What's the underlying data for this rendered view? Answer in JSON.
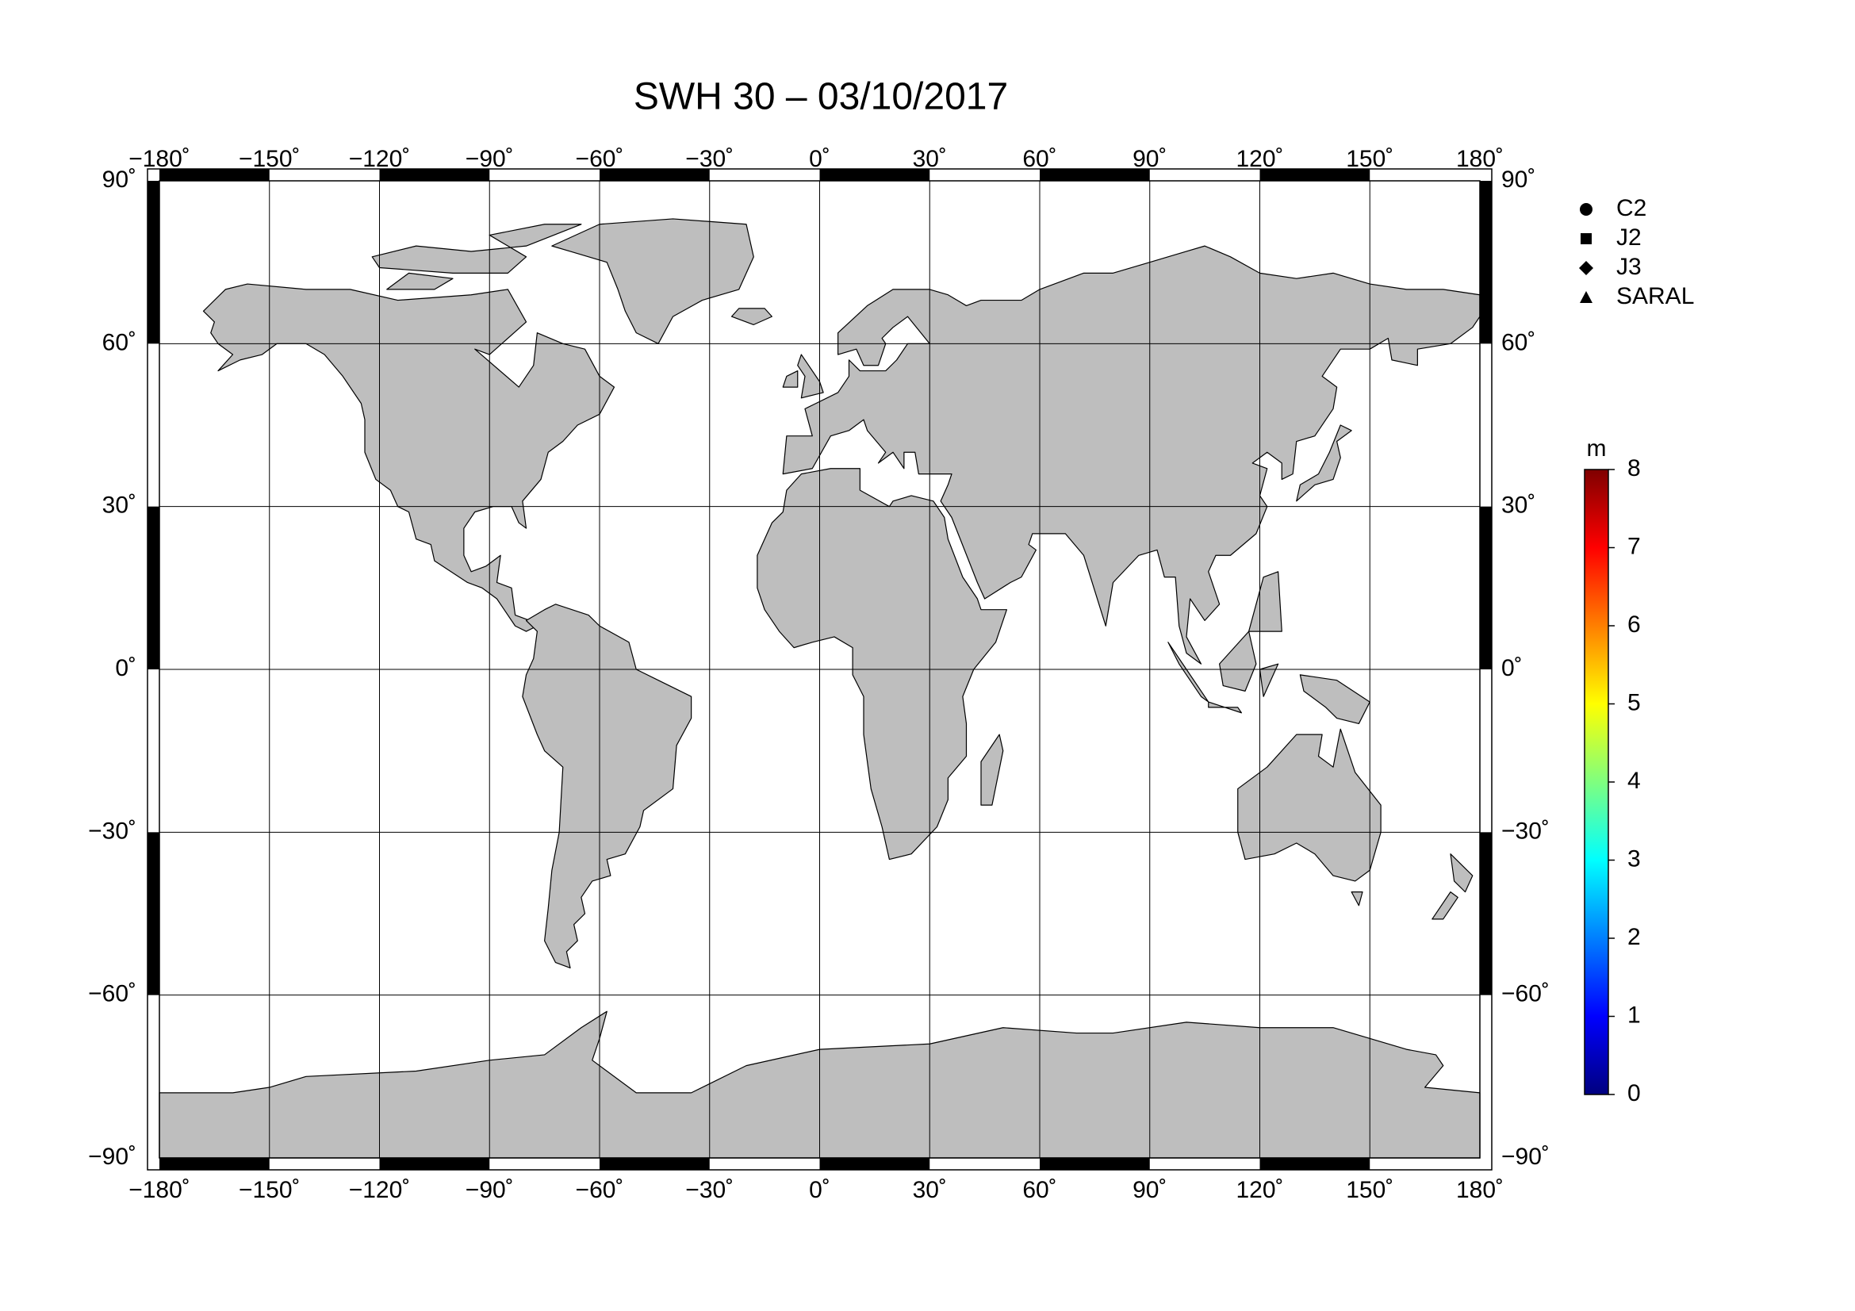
{
  "title": "SWH 30 – 03/10/2017",
  "map": {
    "xlim": [
      -180,
      180
    ],
    "ylim": [
      -90,
      90
    ],
    "xticks": [
      {
        "value": -180,
        "label": "−180˚"
      },
      {
        "value": -150,
        "label": "−150˚"
      },
      {
        "value": -120,
        "label": "−120˚"
      },
      {
        "value": -90,
        "label": "−90˚"
      },
      {
        "value": -60,
        "label": "−60˚"
      },
      {
        "value": -30,
        "label": "−30˚"
      },
      {
        "value": 0,
        "label": "0˚"
      },
      {
        "value": 30,
        "label": "30˚"
      },
      {
        "value": 60,
        "label": "60˚"
      },
      {
        "value": 90,
        "label": "90˚"
      },
      {
        "value": 120,
        "label": "120˚"
      },
      {
        "value": 150,
        "label": "150˚"
      },
      {
        "value": 180,
        "label": "180˚"
      }
    ],
    "yticks": [
      {
        "value": 90,
        "label": "90˚"
      },
      {
        "value": 60,
        "label": "60˚"
      },
      {
        "value": 30,
        "label": "30˚"
      },
      {
        "value": 0,
        "label": "0˚"
      },
      {
        "value": -30,
        "label": "−30˚"
      },
      {
        "value": -60,
        "label": "−60˚"
      },
      {
        "value": -90,
        "label": "−90˚"
      }
    ],
    "grid": true,
    "land_color": "#bebebe"
  },
  "legend": [
    "C2",
    "J2",
    "J3",
    "SARAL"
  ],
  "colorbar": {
    "label": "m",
    "lim": [
      0,
      8
    ],
    "ticks": [
      0,
      1,
      2,
      3,
      4,
      5,
      6,
      7,
      8
    ],
    "colors": [
      "#00007f",
      "#0000ff",
      "#007fff",
      "#00ffff",
      "#7fff7f",
      "#ffff00",
      "#ff7f00",
      "#ff0000",
      "#7f0000"
    ]
  }
}
